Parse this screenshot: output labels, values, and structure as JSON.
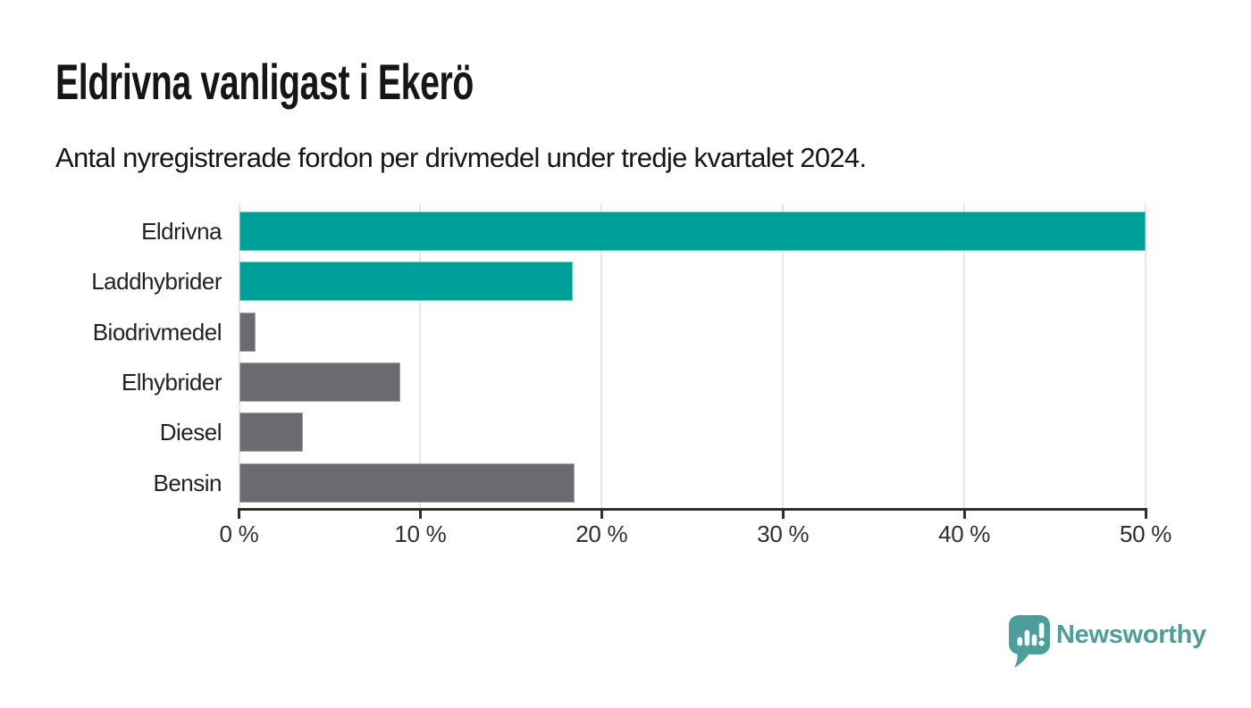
{
  "title": "Eldrivna vanligast i Ekerö",
  "subtitle": "Antal nyregistrerade fordon per drivmedel under tredje kvartalet 2024.",
  "colors": {
    "accent": "#00A09A",
    "bar_gray": "#6C6A70",
    "gridline": "#E7E7E7",
    "axis": "#2F2F2F",
    "text": "#161616",
    "logo": "#4D9D9A"
  },
  "chart_data": {
    "type": "bar",
    "orientation": "horizontal",
    "title": "Eldrivna vanligast i Ekerö",
    "subtitle": "Antal nyregistrerade fordon per drivmedel under tredje kvartalet 2024.",
    "categories": [
      "Eldrivna",
      "Laddhybrider",
      "Biodrivmedel",
      "Elhybrider",
      "Diesel",
      "Bensin"
    ],
    "values": [
      50.0,
      18.4,
      0.9,
      8.9,
      3.5,
      18.5
    ],
    "unit": "%",
    "bar_colors": [
      "#00A09A",
      "#00A09A",
      "#6C6A70",
      "#6C6A70",
      "#6C6A70",
      "#6C6A70"
    ],
    "highlighted_categories": [
      "Eldrivna",
      "Laddhybrider"
    ],
    "xlim": [
      0,
      50
    ],
    "x_ticks": [
      0,
      10,
      20,
      30,
      40,
      50
    ],
    "x_tick_labels": [
      "0 %",
      "10 %",
      "20 %",
      "30 %",
      "40 %",
      "50 %"
    ],
    "xlabel": "",
    "ylabel": "",
    "grid": true,
    "legend": false
  },
  "footer": {
    "brand": "Newsworthy",
    "logo_icon": "newsworthy-speech-bubble-bar-chart-icon"
  }
}
